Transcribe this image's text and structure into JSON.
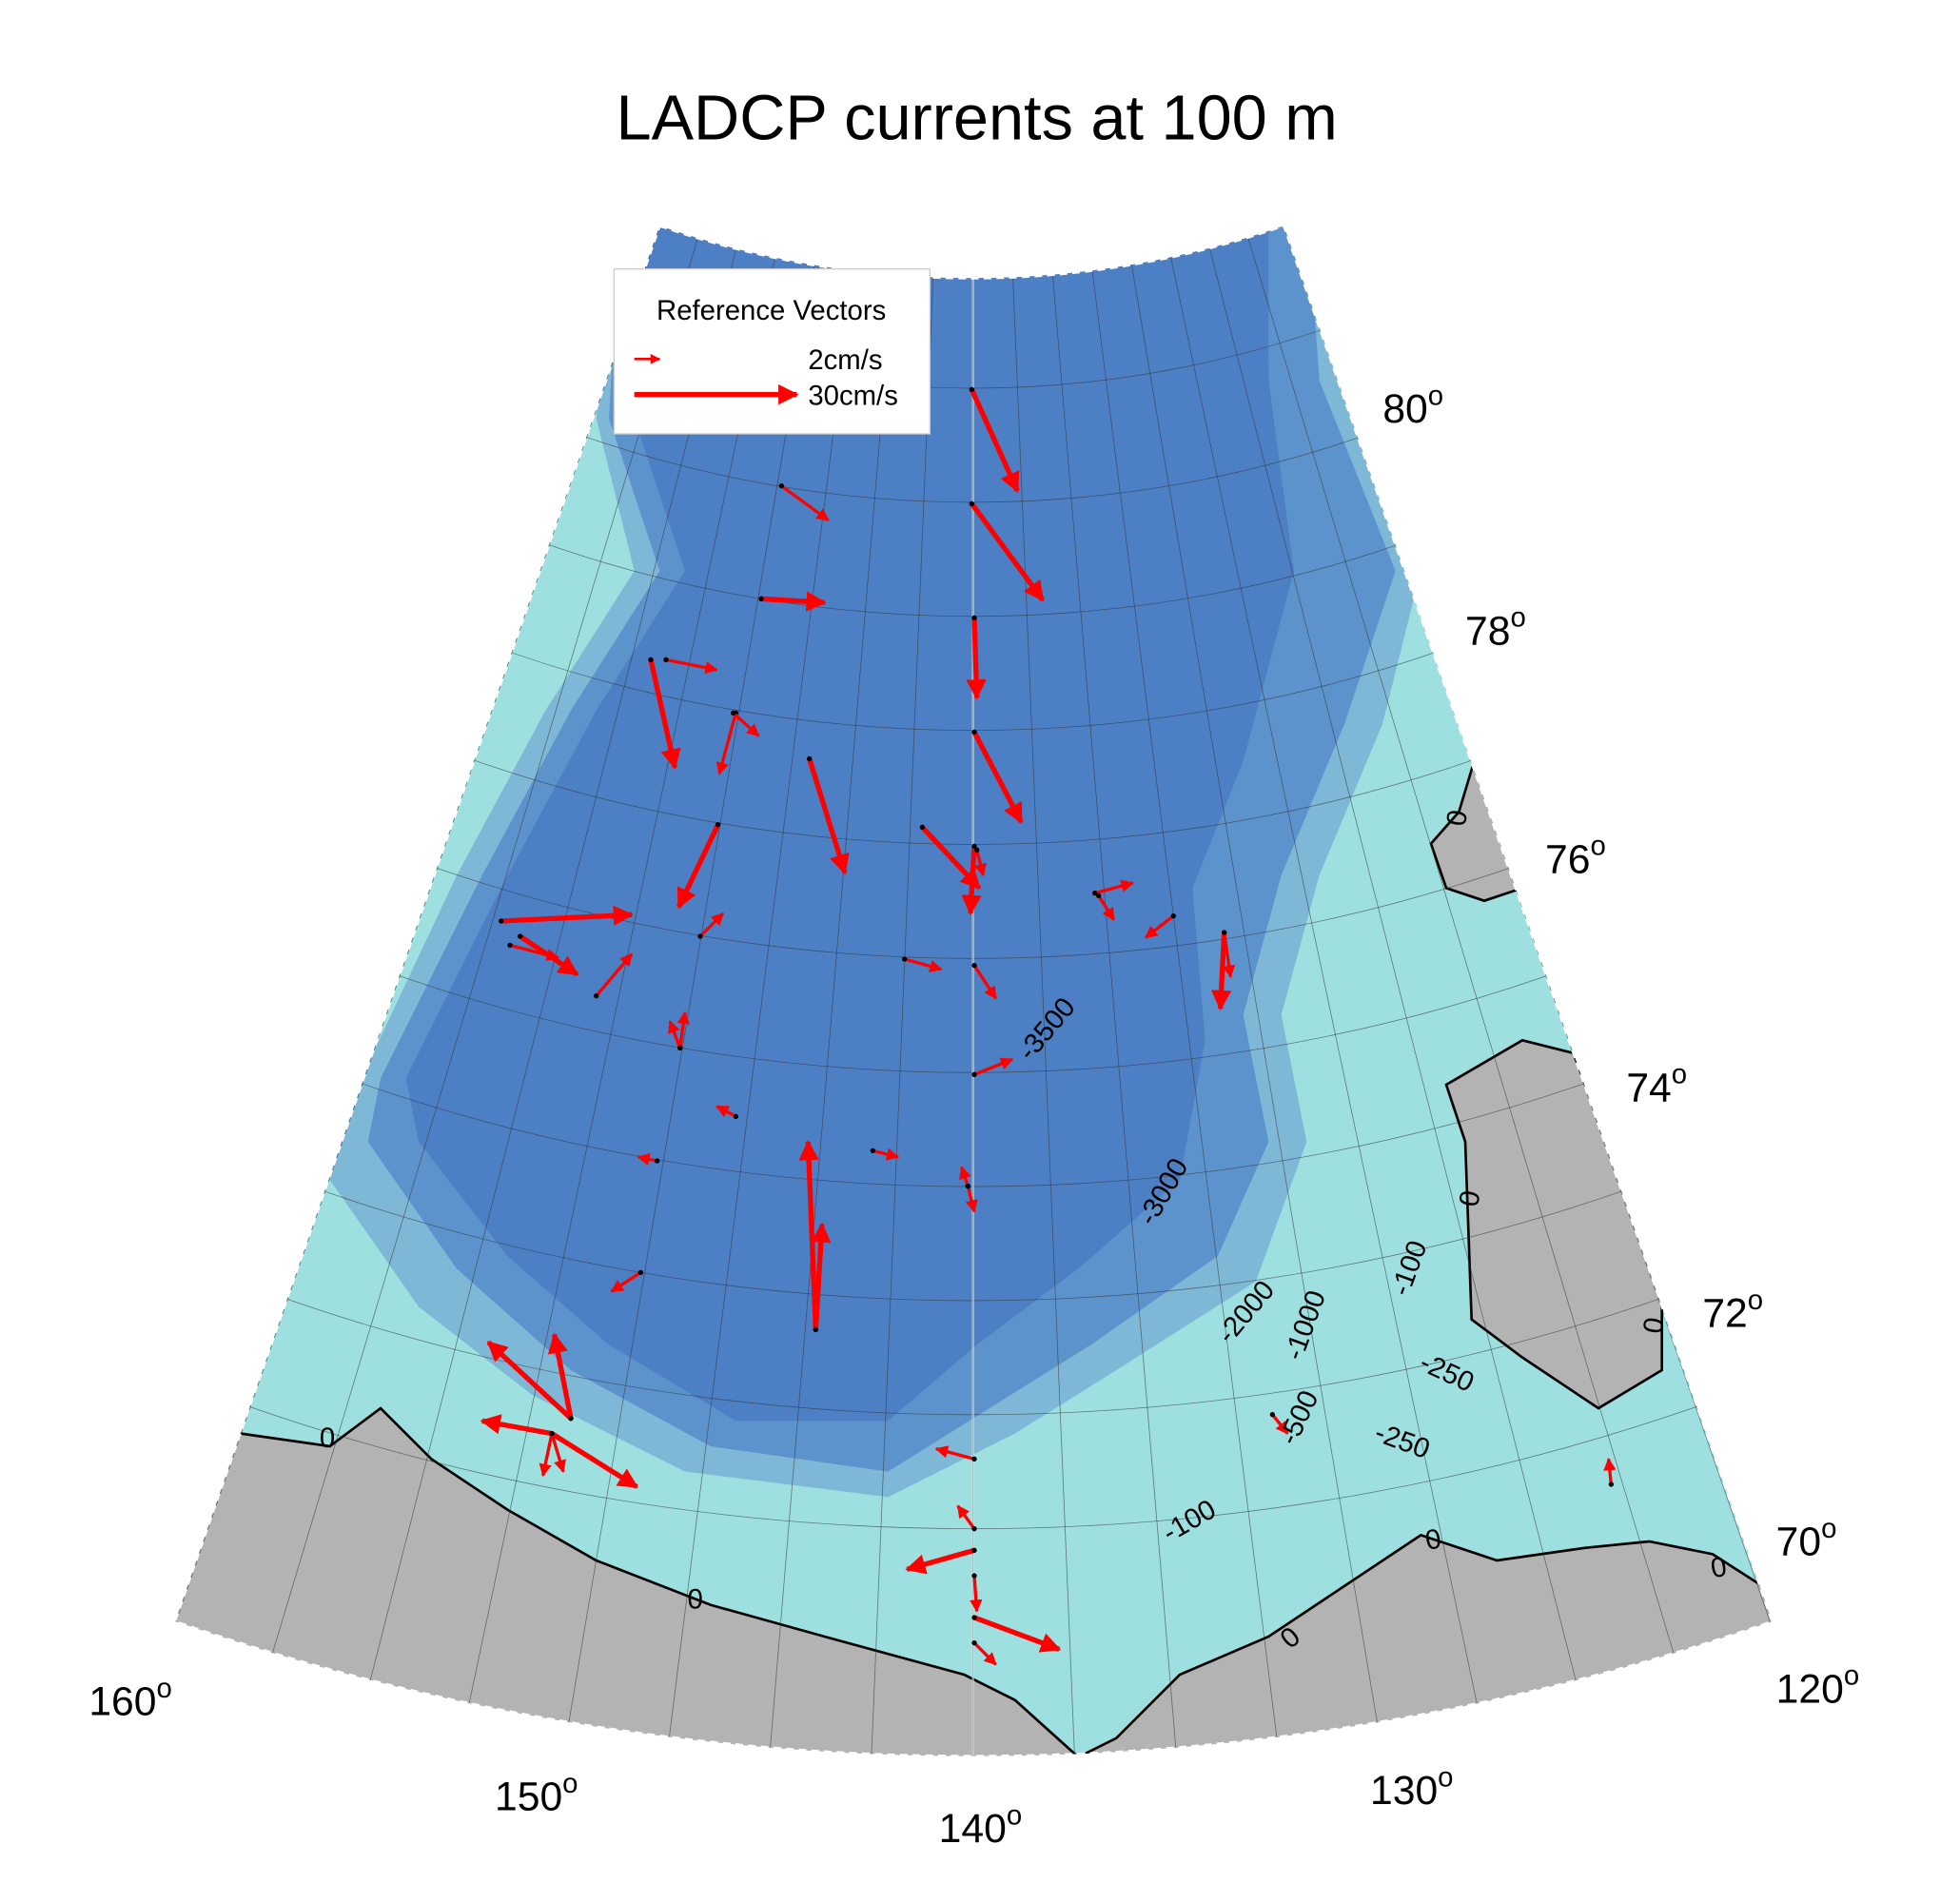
{
  "title": "LADCP currents at 100 m",
  "legend": {
    "title": "Reference Vectors",
    "entries": [
      "2cm/s",
      "30cm/s"
    ]
  },
  "latitude_labels": [
    {
      "degrees": "80",
      "symbol": "o"
    },
    {
      "degrees": "78",
      "symbol": "o"
    },
    {
      "degrees": "76",
      "symbol": "o"
    },
    {
      "degrees": "74",
      "symbol": "o"
    },
    {
      "degrees": "72",
      "symbol": "o"
    },
    {
      "degrees": "70",
      "symbol": "o"
    }
  ],
  "longitude_labels": [
    {
      "degrees": "160",
      "symbol": "o"
    },
    {
      "degrees": "150",
      "symbol": "o"
    },
    {
      "degrees": "140",
      "symbol": "o"
    },
    {
      "degrees": "130",
      "symbol": "o"
    },
    {
      "degrees": "120",
      "symbol": "o"
    }
  ],
  "contour_labels": [
    "-3500",
    "-3000",
    "-2000",
    "-1000",
    "-500",
    "-100",
    "-250",
    "-250",
    "-100",
    "0",
    "0",
    "0",
    "0",
    "0",
    "0",
    "0",
    "0"
  ]
}
